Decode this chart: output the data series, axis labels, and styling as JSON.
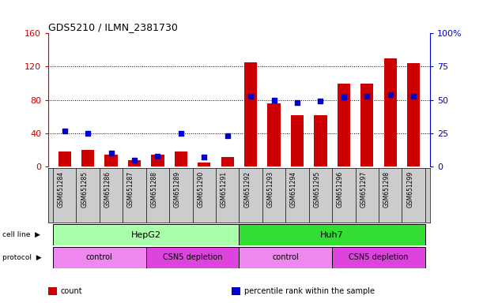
{
  "title": "GDS5210 / ILMN_2381730",
  "samples": [
    "GSM651284",
    "GSM651285",
    "GSM651286",
    "GSM651287",
    "GSM651288",
    "GSM651289",
    "GSM651290",
    "GSM651291",
    "GSM651292",
    "GSM651293",
    "GSM651294",
    "GSM651295",
    "GSM651296",
    "GSM651297",
    "GSM651298",
    "GSM651299"
  ],
  "counts": [
    18,
    20,
    14,
    8,
    14,
    18,
    5,
    12,
    125,
    76,
    62,
    62,
    100,
    100,
    130,
    124
  ],
  "percentiles": [
    27,
    25,
    10,
    5,
    8,
    25,
    7,
    23,
    53,
    50,
    48,
    49,
    52,
    53,
    54,
    53
  ],
  "cell_line_groups": [
    {
      "label": "HepG2",
      "start": 0,
      "end": 7,
      "color": "#aaffaa"
    },
    {
      "label": "Huh7",
      "start": 8,
      "end": 15,
      "color": "#33dd33"
    }
  ],
  "protocol_groups": [
    {
      "label": "control",
      "start": 0,
      "end": 3,
      "color": "#ee88ee"
    },
    {
      "label": "CSN5 depletion",
      "start": 4,
      "end": 7,
      "color": "#dd44dd"
    },
    {
      "label": "control",
      "start": 8,
      "end": 11,
      "color": "#ee88ee"
    },
    {
      "label": "CSN5 depletion",
      "start": 12,
      "end": 15,
      "color": "#dd44dd"
    }
  ],
  "bar_color": "#cc0000",
  "dot_color": "#0000cc",
  "left_ylim": [
    0,
    160
  ],
  "right_ylim": [
    0,
    100
  ],
  "left_yticks": [
    0,
    40,
    80,
    120,
    160
  ],
  "right_yticks": [
    0,
    25,
    50,
    75,
    100
  ],
  "right_yticklabels": [
    "0",
    "25",
    "50",
    "75",
    "100%"
  ],
  "left_ycolor": "#cc0000",
  "right_ycolor": "#0000cc",
  "grid_dotted_at": [
    40,
    80,
    120
  ],
  "legend_items": [
    {
      "label": "count",
      "color": "#cc0000"
    },
    {
      "label": "percentile rank within the sample",
      "color": "#0000cc"
    }
  ],
  "cell_line_label": "cell line",
  "protocol_label": "protocol",
  "sample_bg_color": "#cccccc",
  "plot_bg_color": "#ffffff"
}
